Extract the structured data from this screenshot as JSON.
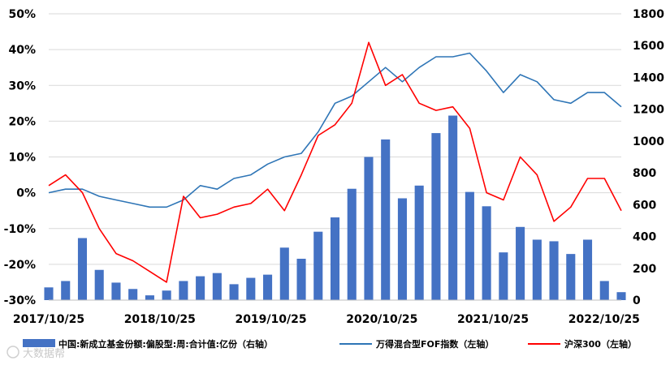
{
  "chart_data": {
    "type": "bar+line",
    "grid": "horizontal",
    "legend_placement": "bottom",
    "x_tick_labels": [
      "2017/10/25",
      "2018/10/25",
      "2019/10/25",
      "2020/10/25",
      "2021/10/25",
      "2022/10/25"
    ],
    "left_axis": {
      "ticks": [
        "50%",
        "40%",
        "30%",
        "20%",
        "10%",
        "0%",
        "-10%",
        "-20%",
        "-30%"
      ],
      "ylim": [
        -0.3,
        0.5
      ]
    },
    "right_axis": {
      "ticks": [
        "1800",
        "1600",
        "1400",
        "1200",
        "1000",
        "800",
        "600",
        "400",
        "200",
        "0"
      ],
      "ylim": [
        0,
        1800
      ]
    },
    "series": [
      {
        "name": "中国:新成立基金份额:偏股型:周:合计值:亿份（右轴）",
        "kind": "bar",
        "axis": "right",
        "color": "#4472C4",
        "x": [
          "2017-10",
          "2017-12",
          "2018-02",
          "2018-04",
          "2018-06",
          "2018-08",
          "2018-10",
          "2018-12",
          "2019-02",
          "2019-04",
          "2019-06",
          "2019-08",
          "2019-10",
          "2019-12",
          "2020-02",
          "2020-04",
          "2020-06",
          "2020-08",
          "2020-10",
          "2020-12",
          "2021-02",
          "2021-04",
          "2021-06",
          "2021-08",
          "2021-10",
          "2021-12",
          "2022-02",
          "2022-04",
          "2022-06",
          "2022-08",
          "2022-10",
          "2022-12",
          "2023-02",
          "2023-04",
          "2023-06"
        ],
        "values": [
          80,
          120,
          390,
          190,
          110,
          70,
          30,
          60,
          120,
          150,
          170,
          100,
          140,
          160,
          330,
          260,
          430,
          520,
          700,
          900,
          1010,
          640,
          720,
          1050,
          1160,
          680,
          590,
          300,
          460,
          380,
          370,
          290,
          380,
          120,
          50
        ]
      },
      {
        "name": "万得混合型FOF指数（左轴）",
        "kind": "line",
        "axis": "left",
        "color": "#2E75B6",
        "x": [
          "2017-10",
          "2017-12",
          "2018-02",
          "2018-04",
          "2018-06",
          "2018-08",
          "2018-10",
          "2018-12",
          "2019-02",
          "2019-04",
          "2019-06",
          "2019-08",
          "2019-10",
          "2019-12",
          "2020-02",
          "2020-04",
          "2020-06",
          "2020-08",
          "2020-10",
          "2020-12",
          "2021-02",
          "2021-04",
          "2021-06",
          "2021-08",
          "2021-10",
          "2021-12",
          "2022-02",
          "2022-04",
          "2022-06",
          "2022-08",
          "2022-10",
          "2022-12",
          "2023-02",
          "2023-04",
          "2023-06"
        ],
        "values": [
          0.0,
          0.01,
          0.01,
          -0.01,
          -0.02,
          -0.03,
          -0.04,
          -0.04,
          -0.02,
          0.02,
          0.01,
          0.04,
          0.05,
          0.08,
          0.1,
          0.11,
          0.17,
          0.25,
          0.27,
          0.31,
          0.35,
          0.31,
          0.35,
          0.38,
          0.38,
          0.39,
          0.34,
          0.28,
          0.33,
          0.31,
          0.26,
          0.25,
          0.28,
          0.28,
          0.24
        ]
      },
      {
        "name": "沪深300（左轴）",
        "kind": "line",
        "axis": "left",
        "color": "#FF0000",
        "x": [
          "2017-10",
          "2017-12",
          "2018-02",
          "2018-04",
          "2018-06",
          "2018-08",
          "2018-10",
          "2018-12",
          "2019-02",
          "2019-04",
          "2019-06",
          "2019-08",
          "2019-10",
          "2019-12",
          "2020-02",
          "2020-04",
          "2020-06",
          "2020-08",
          "2020-10",
          "2020-12",
          "2021-02",
          "2021-04",
          "2021-06",
          "2021-08",
          "2021-10",
          "2021-12",
          "2022-02",
          "2022-04",
          "2022-06",
          "2022-08",
          "2022-10",
          "2022-12",
          "2023-02",
          "2023-04",
          "2023-06"
        ],
        "values": [
          0.02,
          0.05,
          0.0,
          -0.1,
          -0.17,
          -0.19,
          -0.22,
          -0.25,
          -0.01,
          -0.07,
          -0.06,
          -0.04,
          -0.03,
          0.01,
          -0.05,
          0.05,
          0.16,
          0.19,
          0.25,
          0.42,
          0.3,
          0.33,
          0.25,
          0.23,
          0.24,
          0.18,
          0.0,
          -0.02,
          0.1,
          0.05,
          -0.08,
          -0.04,
          0.04,
          0.04,
          -0.05
        ]
      }
    ]
  },
  "watermark": "大数据帮"
}
